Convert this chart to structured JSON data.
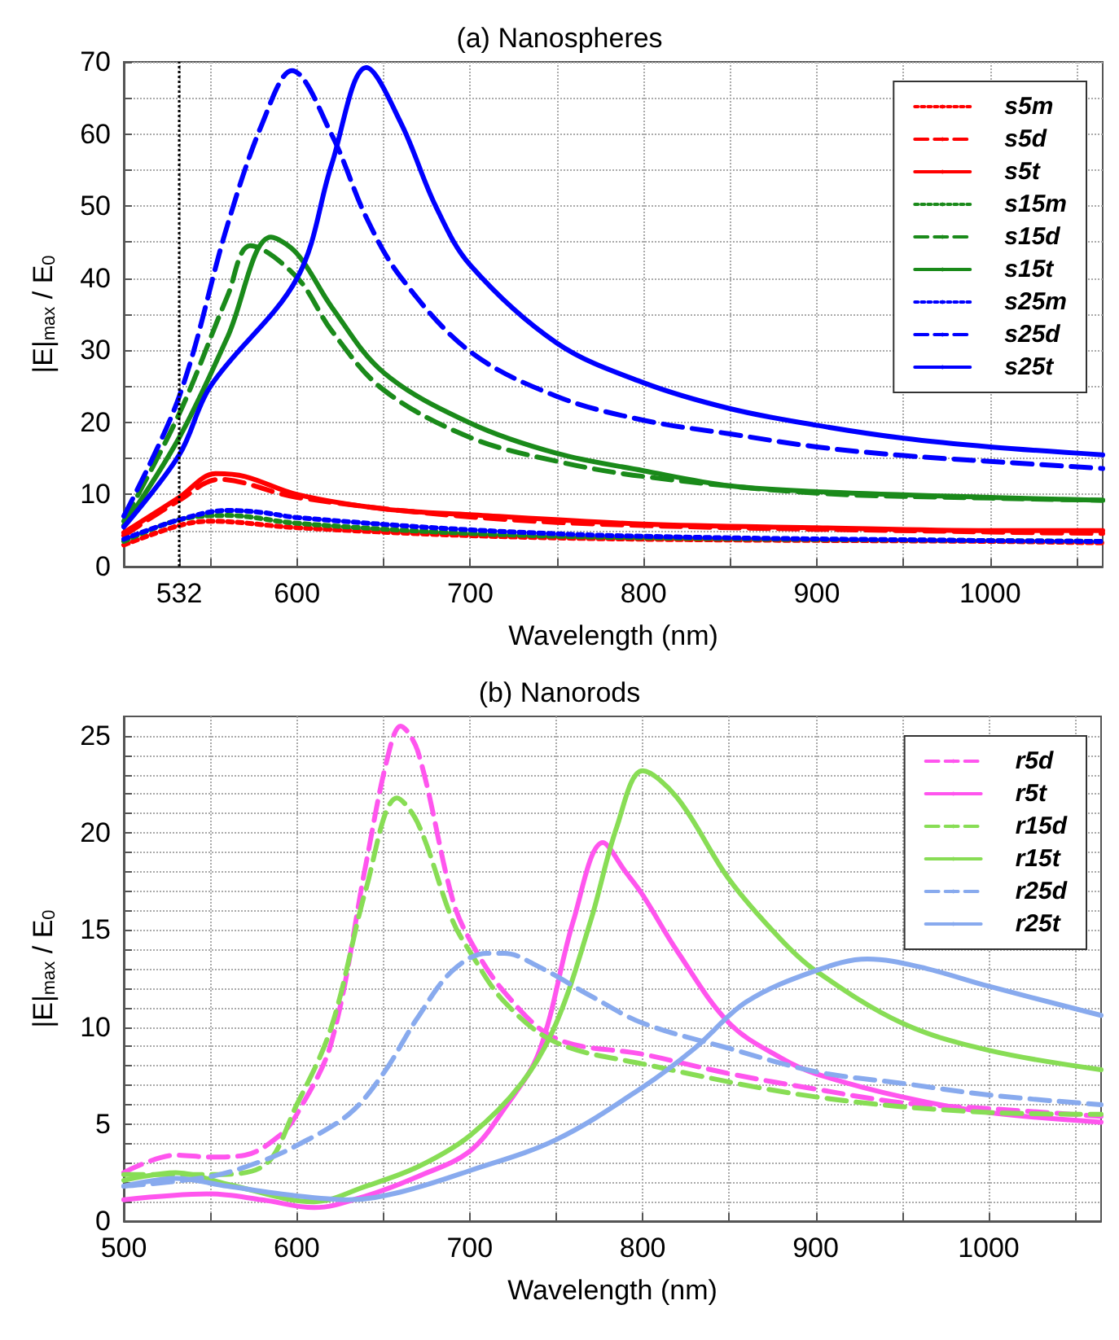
{
  "chart_data": [
    {
      "type": "line",
      "title": "(a) Nanospheres",
      "xlabel": "Wavelength (nm)",
      "ylabel": "|E|$_{max}$ / E$_{0}$",
      "xlim": [
        500,
        1065
      ],
      "ylim": [
        0,
        70
      ],
      "xticks": [
        532,
        {
          "value": 550,
          "label": null
        },
        600,
        {
          "value": 650,
          "label": null
        },
        700,
        {
          "value": 750,
          "label": null
        },
        800,
        {
          "value": 850,
          "label": null
        },
        900,
        {
          "value": 950,
          "label": null
        },
        1000,
        {
          "value": 1050,
          "label": null
        }
      ],
      "yticks": [
        0,
        {
          "value": 5,
          "label": null
        },
        10,
        {
          "value": 15,
          "label": null
        },
        20,
        {
          "value": 25,
          "label": null
        },
        30,
        {
          "value": 35,
          "label": null
        },
        40,
        {
          "value": 45,
          "label": null
        },
        50,
        {
          "value": 55,
          "label": null
        },
        60,
        {
          "value": 65,
          "label": null
        },
        70
      ],
      "grid": true,
      "legend": "top right",
      "marker": "none",
      "ref_lines": [
        {
          "axis": "x",
          "value": 532,
          "label": null,
          "color": "#000000",
          "line_style": "dotted"
        }
      ],
      "series": [
        {
          "name": "s5m",
          "color": "#ff0000",
          "line_style": "dotted",
          "x": [
            500,
            532,
            550,
            600,
            700,
            800,
            1000,
            1065
          ],
          "values": [
            3.0,
            5.7,
            6.3,
            5.4,
            4.3,
            3.8,
            3.5,
            3.3
          ]
        },
        {
          "name": "s5d",
          "color": "#ff0000",
          "line_style": "dashed",
          "x": [
            500,
            532,
            555,
            600,
            700,
            800,
            1000,
            1065
          ],
          "values": [
            4.3,
            9.2,
            12.1,
            9.6,
            6.9,
            5.7,
            4.8,
            4.6
          ]
        },
        {
          "name": "s5t",
          "color": "#ff0000",
          "line_style": "solid",
          "x": [
            500,
            532,
            553,
            570,
            600,
            650,
            700,
            800,
            900,
            1000,
            1065
          ],
          "values": [
            4.7,
            9.6,
            12.9,
            12.5,
            10.0,
            8.0,
            7.2,
            5.9,
            5.4,
            5.0,
            5.0
          ]
        },
        {
          "name": "s15m",
          "color": "#1a8a1a",
          "line_style": "dotted",
          "x": [
            500,
            532,
            560,
            600,
            700,
            800,
            1000,
            1065
          ],
          "values": [
            3.5,
            6.5,
            7.1,
            6.0,
            4.6,
            4.0,
            3.6,
            3.5
          ]
        },
        {
          "name": "s15d",
          "color": "#1a8a1a",
          "line_style": "dashed",
          "x": [
            500,
            532,
            560,
            573,
            600,
            620,
            650,
            700,
            750,
            800,
            900,
            1000,
            1065
          ],
          "values": [
            6.3,
            21.2,
            37.6,
            44.5,
            40.1,
            32.7,
            24.5,
            17.9,
            14.6,
            12.5,
            10.2,
            9.5,
            9.2
          ]
        },
        {
          "name": "s15t",
          "color": "#1a8a1a",
          "line_style": "solid",
          "x": [
            500,
            532,
            560,
            585,
            600,
            620,
            650,
            700,
            750,
            800,
            850,
            900,
            1000,
            1065
          ],
          "values": [
            5.7,
            17.9,
            31.9,
            45.7,
            43.4,
            36.0,
            26.9,
            19.9,
            15.7,
            13.3,
            11.2,
            10.4,
            9.6,
            9.2
          ]
        },
        {
          "name": "s25m",
          "color": "#0000ff",
          "line_style": "dotted",
          "x": [
            500,
            532,
            560,
            580,
            600,
            700,
            800,
            1000,
            1065
          ],
          "values": [
            3.8,
            6.5,
            7.8,
            7.5,
            6.8,
            5.1,
            4.2,
            3.6,
            3.5
          ]
        },
        {
          "name": "s25d",
          "color": "#0000ff",
          "line_style": "dashed",
          "x": [
            500,
            532,
            560,
            580,
            597,
            620,
            640,
            660,
            700,
            750,
            800,
            850,
            900,
            950,
            1000,
            1065
          ],
          "values": [
            7.0,
            23.6,
            47.5,
            61.5,
            68.8,
            59.9,
            48.4,
            40.1,
            29.8,
            23.6,
            20.3,
            18.4,
            16.6,
            15.4,
            14.6,
            13.6
          ]
        },
        {
          "name": "s25t",
          "color": "#0000ff",
          "line_style": "solid",
          "x": [
            500,
            532,
            550,
            600,
            620,
            640,
            660,
            680,
            700,
            750,
            800,
            850,
            900,
            950,
            1000,
            1065
          ],
          "values": [
            5.5,
            15.5,
            25.0,
            40.0,
            55.8,
            69.2,
            61.5,
            50.0,
            41.8,
            31.0,
            25.5,
            21.9,
            19.6,
            17.8,
            16.6,
            15.5
          ]
        }
      ]
    },
    {
      "type": "line",
      "title": "(b) Nanorods",
      "xlabel": "Wavelength (nm)",
      "ylabel": "|E|$_{max}$ / E$_{0}$",
      "xlim": [
        500,
        1065
      ],
      "ylim": [
        0,
        26
      ],
      "xticks": [
        500,
        {
          "value": 550,
          "label": null
        },
        600,
        {
          "value": 650,
          "label": null
        },
        700,
        {
          "value": 750,
          "label": null
        },
        800,
        {
          "value": 850,
          "label": null
        },
        900,
        {
          "value": 950,
          "label": null
        },
        1000,
        {
          "value": 1050,
          "label": null
        }
      ],
      "yticks": [
        0,
        {
          "value": 1,
          "label": null
        },
        {
          "value": 2,
          "label": null
        },
        {
          "value": 3,
          "label": null
        },
        {
          "value": 4,
          "label": null
        },
        5,
        {
          "value": 6,
          "label": null
        },
        {
          "value": 7,
          "label": null
        },
        {
          "value": 8,
          "label": null
        },
        {
          "value": 9,
          "label": null
        },
        10,
        {
          "value": 11,
          "label": null
        },
        {
          "value": 12,
          "label": null
        },
        {
          "value": 13,
          "label": null
        },
        {
          "value": 14,
          "label": null
        },
        15,
        {
          "value": 16,
          "label": null
        },
        {
          "value": 17,
          "label": null
        },
        {
          "value": 18,
          "label": null
        },
        {
          "value": 19,
          "label": null
        },
        20,
        {
          "value": 21,
          "label": null
        },
        {
          "value": 22,
          "label": null
        },
        {
          "value": 23,
          "label": null
        },
        {
          "value": 24,
          "label": null
        },
        25
      ],
      "grid": true,
      "legend": "top right",
      "marker": "none",
      "series": [
        {
          "name": "r5d",
          "color": "#ff55ee",
          "line_style": "dashed",
          "x": [
            500,
            530,
            550,
            570,
            590,
            600,
            620,
            640,
            652,
            660,
            670,
            690,
            700,
            720,
            750,
            800,
            850,
            900,
            950,
            1000,
            1065
          ],
          "values": [
            2.5,
            3.4,
            3.3,
            3.4,
            4.4,
            5.5,
            9.2,
            18.4,
            23.7,
            25.5,
            24.2,
            16.6,
            14.5,
            11.8,
            9.4,
            8.6,
            7.6,
            6.8,
            6.1,
            5.8,
            5.4
          ]
        },
        {
          "name": "r5t",
          "color": "#ff55ee",
          "line_style": "solid",
          "x": [
            500,
            550,
            580,
            610,
            640,
            670,
            700,
            720,
            740,
            760,
            777,
            790,
            800,
            820,
            850,
            880,
            900,
            950,
            1000,
            1065
          ],
          "values": [
            1.1,
            1.4,
            1.1,
            0.7,
            1.3,
            2.3,
            3.6,
            5.8,
            8.7,
            15.5,
            19.5,
            18.0,
            16.8,
            13.9,
            10.2,
            8.4,
            7.6,
            6.4,
            5.6,
            5.1
          ]
        },
        {
          "name": "r15d",
          "color": "#88dd55",
          "line_style": "dashed",
          "x": [
            500,
            550,
            580,
            600,
            620,
            640,
            658,
            670,
            690,
            700,
            720,
            750,
            800,
            900,
            1000,
            1065
          ],
          "values": [
            2.4,
            2.4,
            2.8,
            6.0,
            10.0,
            17.1,
            21.8,
            20.5,
            15.5,
            13.9,
            11.3,
            9.2,
            8.1,
            6.4,
            5.6,
            5.5
          ]
        },
        {
          "name": "r15t",
          "color": "#88dd55",
          "line_style": "solid",
          "x": [
            500,
            530,
            560,
            610,
            640,
            670,
            700,
            730,
            750,
            770,
            785,
            800,
            820,
            850,
            880,
            900,
            950,
            1000,
            1065
          ],
          "values": [
            2.1,
            2.5,
            1.9,
            1.0,
            1.8,
            2.8,
            4.4,
            7.1,
            10.2,
            15.5,
            20.3,
            23.2,
            21.8,
            17.6,
            14.5,
            12.9,
            10.2,
            8.8,
            7.8
          ]
        },
        {
          "name": "r25d",
          "color": "#88aaee",
          "line_style": "dashed",
          "x": [
            500,
            550,
            580,
            600,
            630,
            650,
            670,
            690,
            710,
            720,
            740,
            770,
            800,
            850,
            900,
            950,
            1000,
            1065
          ],
          "values": [
            1.8,
            2.3,
            3.1,
            3.9,
            5.5,
            7.6,
            10.5,
            12.9,
            13.8,
            13.8,
            13.1,
            11.6,
            10.2,
            8.9,
            7.7,
            7.1,
            6.5,
            6.0
          ]
        },
        {
          "name": "r25t",
          "color": "#88aaee",
          "line_style": "solid",
          "x": [
            500,
            530,
            560,
            600,
            630,
            660,
            700,
            750,
            800,
            830,
            860,
            900,
            930,
            960,
            1000,
            1065
          ],
          "values": [
            1.8,
            2.2,
            1.8,
            1.3,
            1.1,
            1.5,
            2.6,
            4.2,
            6.9,
            8.9,
            11.3,
            12.9,
            13.5,
            13.1,
            12.1,
            10.6
          ]
        }
      ]
    }
  ]
}
